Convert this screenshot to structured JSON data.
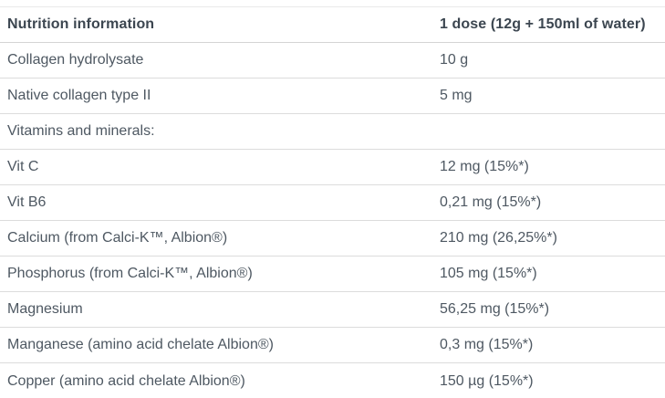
{
  "table": {
    "header": {
      "name": "Nutrition information",
      "value": "1 dose (12g + 150ml of water)"
    },
    "rows": [
      {
        "name": "Collagen hydrolysate",
        "value": "10 g"
      },
      {
        "name": "Native collagen type II",
        "value": "5 mg"
      },
      {
        "name": "Vitamins and minerals:",
        "value": ""
      },
      {
        "name": "Vit C",
        "value": "12 mg (15%*)"
      },
      {
        "name": "Vit B6",
        "value": "0,21 mg (15%*)"
      },
      {
        "name": "Calcium (from Calci-K™, Albion®)",
        "value": "210 mg (26,25%*)"
      },
      {
        "name": "Phosphorus (from Calci-K™, Albion®)",
        "value": "105 mg (15%*)"
      },
      {
        "name": "Magnesium",
        "value": "56,25 mg (15%*)"
      },
      {
        "name": "Manganese (amino acid chelate Albion®)",
        "value": "0,3 mg (15%*)"
      },
      {
        "name": "Copper (amino acid chelate Albion®)",
        "value": "150 µg (15%*)"
      }
    ],
    "colors": {
      "header_text": "#3c4650",
      "body_text": "#4e5862",
      "row_border": "#dcdcdc",
      "background": "#ffffff"
    }
  }
}
